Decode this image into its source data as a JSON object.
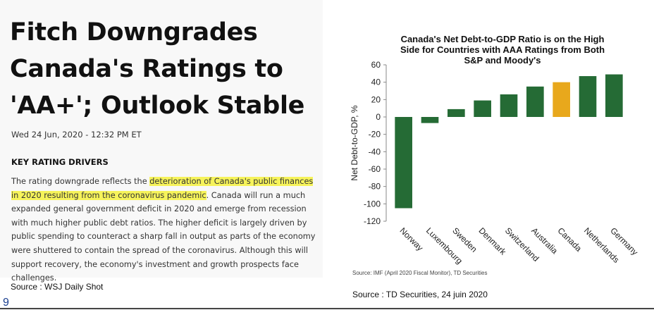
{
  "article": {
    "headline_lines": [
      "Fitch Downgrades",
      "Canada's Ratings to",
      "'AA+'; Outlook Stable"
    ],
    "dateline": "Wed 24 Jun, 2020 - 12:32 PM ET",
    "section_title": "KEY RATING DRIVERS",
    "body_pre": "The rating downgrade reflects the ",
    "body_highlight": "deterioration of Canada's public finances in 2020 resulting from the coronavirus pandemic",
    "body_post": ". Canada will run a much expanded general government deficit in 2020 and emerge from recession with much higher public debt ratios. The higher deficit is largely driven by public spending to counteract a sharp fall in output as parts of the economy were shuttered to contain the spread of the coronavirus. Although this will support recovery, the economy's investment and growth prospects face challenges.",
    "source": "Source : WSJ Daily Shot"
  },
  "page_number": "9",
  "chart_source_caption": "Source : TD Securities, 24 juin 2020",
  "chart_data": {
    "type": "bar",
    "title_lines": [
      "Canada's Net Debt-to-GDP Ratio is on the High",
      "Side for Countries with AAA Ratings from Both",
      "S&P and Moody's"
    ],
    "ylabel": "Net Debt-to-GDP, %",
    "xlabel": "",
    "categories": [
      "Norway",
      "Luxembourg",
      "Sweden",
      "Denmark",
      "Switzerland",
      "Australia",
      "Canada",
      "Netherlands",
      "Germany"
    ],
    "values": [
      -105,
      -7,
      9,
      19,
      26,
      35,
      40,
      47,
      49
    ],
    "highlight_category": "Canada",
    "ylim": [
      -120,
      60
    ],
    "yticks": [
      60,
      40,
      20,
      0,
      -20,
      -40,
      -60,
      -80,
      -100,
      -120
    ],
    "bar_color": "#256b35",
    "highlight_color": "#e8a81c",
    "source_note": "Source: IMF (April 2020 Fiscal Monitor), TD Securities",
    "grid": false
  }
}
